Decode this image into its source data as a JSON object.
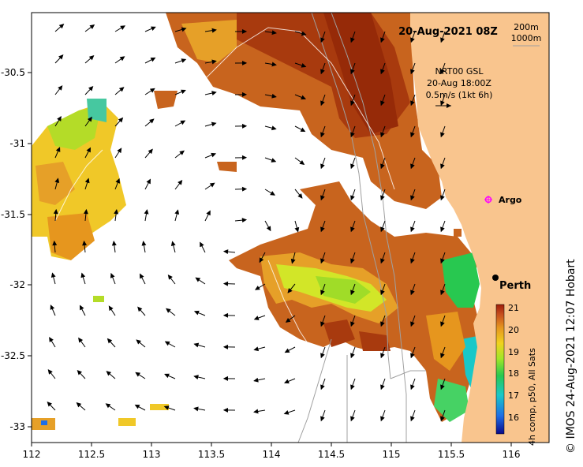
{
  "map": {
    "date_title": "20-Aug-2021 08Z",
    "depth_legend": [
      "200m",
      "1000m"
    ],
    "current_info": {
      "model": "NRT00 GSL",
      "time": "20-Aug 18:00Z",
      "scale": "0.5m/s (1kt 6h)"
    },
    "x_ticks": [
      "112",
      "112.5",
      "113",
      "113.5",
      "114",
      "114.5",
      "115",
      "115.5",
      "116"
    ],
    "y_ticks": [
      "-30.5",
      "-31",
      "-31.5",
      "-32",
      "-32.5",
      "-33"
    ],
    "places": {
      "argo": "Argo",
      "perth": "Perth"
    },
    "colorbar": {
      "ticks": [
        "21",
        "20",
        "19",
        "18",
        "17",
        "16"
      ],
      "title": "4h comp, p50, All Sats"
    },
    "credit": "© IMOS 24-Aug-2021 12:07 Hobart",
    "colors": {
      "land": "#f9c58e",
      "sea": "#ffffff",
      "arrow": "#000000",
      "argo_marker": "#ff00ff"
    }
  }
}
